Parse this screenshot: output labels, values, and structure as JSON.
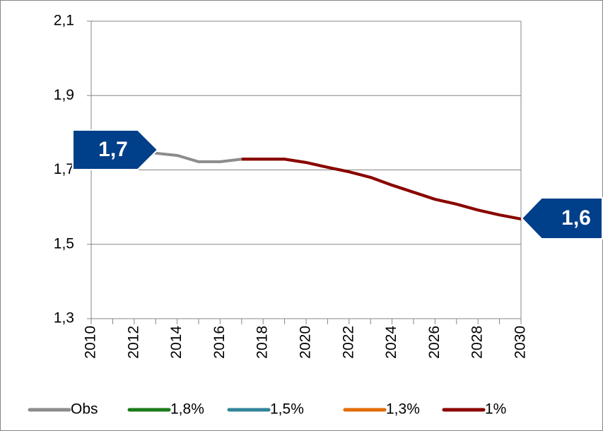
{
  "chart_data": {
    "type": "line",
    "x": [
      2010,
      2011,
      2012,
      2013,
      2014,
      2015,
      2016,
      2017,
      2018,
      2019,
      2020,
      2021,
      2022,
      2023,
      2024,
      2025,
      2026,
      2027,
      2028,
      2029,
      2030
    ],
    "series": [
      {
        "name": "Obs",
        "color": "#8c8c8c",
        "values": [
          1.79,
          1.78,
          1.765,
          1.745,
          1.739,
          1.722,
          1.722,
          1.729,
          null,
          null,
          null,
          null,
          null,
          null,
          null,
          null,
          null,
          null,
          null,
          null,
          null
        ]
      },
      {
        "name": "1,8%",
        "color": "#1a7a1a",
        "values": [
          null,
          null,
          null,
          null,
          null,
          null,
          null,
          1.729,
          1.729,
          1.729,
          1.72,
          1.707,
          1.695,
          1.68,
          1.659,
          1.64,
          1.621,
          1.608,
          1.592,
          1.579,
          1.568
        ]
      },
      {
        "name": "1,5%",
        "color": "#31849b",
        "values": [
          null,
          null,
          null,
          null,
          null,
          null,
          null,
          1.729,
          1.729,
          1.729,
          1.72,
          1.707,
          1.695,
          1.68,
          1.659,
          1.64,
          1.621,
          1.608,
          1.592,
          1.579,
          1.568
        ]
      },
      {
        "name": "1,3%",
        "color": "#e36c09",
        "values": [
          null,
          null,
          null,
          null,
          null,
          null,
          null,
          1.729,
          1.729,
          1.729,
          1.72,
          1.707,
          1.695,
          1.68,
          1.659,
          1.64,
          1.621,
          1.608,
          1.592,
          1.579,
          1.568
        ]
      },
      {
        "name": "1%",
        "color": "#8b0000",
        "values": [
          null,
          null,
          null,
          null,
          null,
          null,
          null,
          1.729,
          1.729,
          1.729,
          1.72,
          1.707,
          1.695,
          1.68,
          1.659,
          1.64,
          1.621,
          1.608,
          1.592,
          1.579,
          1.568
        ]
      }
    ],
    "xlim": [
      2010,
      2030
    ],
    "xticks": [
      2010,
      2012,
      2014,
      2016,
      2018,
      2020,
      2022,
      2024,
      2026,
      2028,
      2030
    ],
    "ylim": [
      1.3,
      2.1
    ],
    "yticks": [
      {
        "value": 1.3,
        "label": "1,3"
      },
      {
        "value": 1.5,
        "label": "1,5"
      },
      {
        "value": 1.7,
        "label": "1,7"
      },
      {
        "value": 1.9,
        "label": "1,9"
      },
      {
        "value": 2.1,
        "label": "2,1"
      }
    ],
    "grid": true,
    "legend": "bottom",
    "annotations": [
      "1,7",
      "1,6"
    ]
  }
}
